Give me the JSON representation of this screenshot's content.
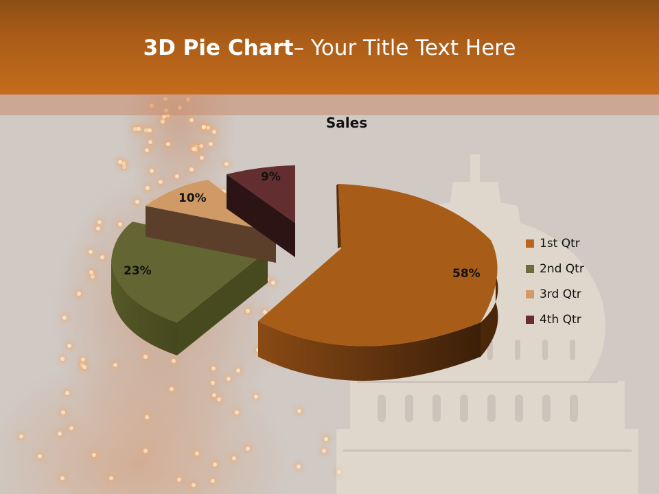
{
  "slide": {
    "title_bold": "3D Pie Chart",
    "title_rest": "– Your Title Text Here",
    "header_color_top": "#8b4e14",
    "header_color_bottom": "#c46c1c",
    "background_color": "#d0c9c4"
  },
  "chart_data": {
    "type": "pie",
    "variant": "3d-exploded",
    "title": "Sales",
    "categories": [
      "1st Qtr",
      "2nd Qtr",
      "3rd Qtr",
      "4th Qtr"
    ],
    "values": [
      58,
      23,
      10,
      9
    ],
    "value_labels": [
      "58%",
      "23%",
      "10%",
      "9%"
    ],
    "colors": [
      "#a75c18",
      "#636632",
      "#cf9a66",
      "#632e30"
    ],
    "legend_position": "right"
  },
  "legend": {
    "items": [
      {
        "label": "1st Qtr",
        "color": "#b9651e"
      },
      {
        "label": "2nd Qtr",
        "color": "#6c6e38"
      },
      {
        "label": "3rd Qtr",
        "color": "#d49a68"
      },
      {
        "label": "4th Qtr",
        "color": "#6a2c2e"
      }
    ]
  }
}
